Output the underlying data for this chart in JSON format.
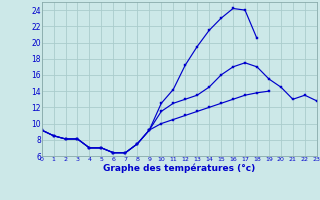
{
  "title": "Graphe des températures (°c)",
  "bg_color": "#cce8e8",
  "grid_color": "#aacccc",
  "line_color": "#0000cc",
  "xlim": [
    0,
    23
  ],
  "ylim": [
    6,
    25
  ],
  "xticks": [
    0,
    1,
    2,
    3,
    4,
    5,
    6,
    7,
    8,
    9,
    10,
    11,
    12,
    13,
    14,
    15,
    16,
    17,
    18,
    19,
    20,
    21,
    22,
    23
  ],
  "yticks": [
    6,
    8,
    10,
    12,
    14,
    16,
    18,
    20,
    22,
    24
  ],
  "x_max": [
    0,
    1,
    2,
    3,
    4,
    5,
    6,
    7,
    8,
    9,
    10,
    11,
    12,
    13,
    14,
    15,
    16,
    17,
    18
  ],
  "y_max": [
    9.2,
    8.5,
    8.1,
    8.1,
    7.0,
    7.0,
    6.4,
    6.4,
    7.5,
    9.2,
    12.5,
    14.2,
    17.2,
    19.5,
    21.5,
    23.0,
    24.2,
    24.0,
    20.5
  ],
  "x_mid": [
    0,
    1,
    2,
    3,
    4,
    5,
    6,
    7,
    8,
    9,
    10,
    11,
    12,
    13,
    14,
    15,
    16,
    17,
    18,
    19,
    20,
    21,
    22,
    23
  ],
  "y_mid": [
    9.2,
    8.5,
    8.1,
    8.1,
    7.0,
    7.0,
    6.4,
    6.4,
    7.5,
    9.2,
    11.5,
    12.5,
    13.0,
    13.5,
    14.5,
    16.0,
    17.0,
    17.5,
    17.0,
    15.5,
    14.5,
    13.0,
    13.5,
    12.8
  ],
  "x_min": [
    0,
    1,
    2,
    3,
    4,
    5,
    6,
    7,
    8,
    9,
    10,
    11,
    12,
    13,
    14,
    15,
    16,
    17,
    18,
    19
  ],
  "y_min": [
    9.2,
    8.5,
    8.1,
    8.1,
    7.0,
    7.0,
    6.4,
    6.4,
    7.5,
    9.2,
    10.0,
    10.5,
    11.0,
    11.5,
    12.0,
    12.5,
    13.0,
    13.5,
    13.8,
    14.0
  ]
}
